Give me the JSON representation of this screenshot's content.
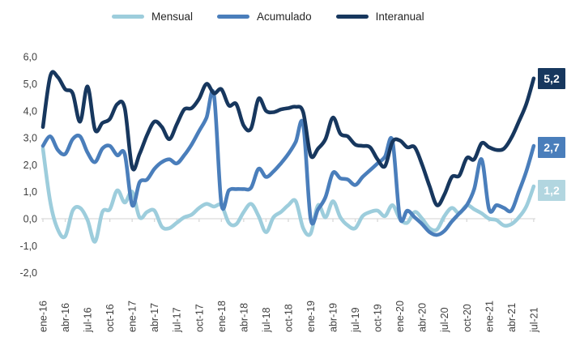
{
  "chart": {
    "legend": [
      {
        "label": "Mensual",
        "color": "#9DCDDC"
      },
      {
        "label": "Acumulado",
        "color": "#4A7EBB"
      },
      {
        "label": "Interanual",
        "color": "#17375E"
      }
    ],
    "end_labels": [
      {
        "text": "5,2",
        "color": "#17375E",
        "series": "Interanual"
      },
      {
        "text": "2,7",
        "color": "#4A7EBB",
        "series": "Acumulado"
      },
      {
        "text": "1,2",
        "color": "#B2D6E0",
        "series": "Mensual"
      }
    ]
  },
  "chart_data": {
    "type": "line",
    "title": "",
    "xlabel": "",
    "ylabel": "",
    "ylim": [
      -2,
      6
    ],
    "grid": "zero-line-only",
    "legend_position": "top",
    "decimal_separator": ",",
    "months_start": "ene-16",
    "months_end": "jul-21",
    "x_tick_labels": [
      "ene-16",
      "abr-16",
      "jul-16",
      "oct-16",
      "ene-17",
      "abr-17",
      "jul-17",
      "oct-17",
      "ene-18",
      "abr-18",
      "jul-18",
      "oct-18",
      "ene-19",
      "abr-19",
      "jul-19",
      "oct-19",
      "ene-20",
      "abr-20",
      "jul-20",
      "oct-20",
      "ene-21",
      "abr-21",
      "jul-21"
    ],
    "y_tick_labels": [
      "6,0",
      "5,0",
      "4,0",
      "3,0",
      "2,0",
      "1,0",
      "0,0",
      "-1,0",
      "-2,0"
    ],
    "series": [
      {
        "name": "Mensual",
        "color": "#9DCDDC",
        "end_value_label": "1,2",
        "values": [
          2.6,
          0.6,
          -0.4,
          -0.65,
          0.3,
          0.4,
          -0.05,
          -0.85,
          0.25,
          0.35,
          1.05,
          0.6,
          1.0,
          0.05,
          0.25,
          0.3,
          -0.3,
          -0.35,
          -0.15,
          0.05,
          0.15,
          0.4,
          0.55,
          0.45,
          0.5,
          -0.15,
          -0.2,
          0.25,
          0.55,
          0.1,
          -0.5,
          0.05,
          0.25,
          0.5,
          0.65,
          -0.35,
          -0.55,
          0.5,
          0.05,
          0.65,
          0.05,
          -0.25,
          -0.35,
          0.1,
          0.25,
          0.3,
          0.1,
          0.5,
          0.0,
          -0.15,
          0.25,
          0.0,
          -0.35,
          -0.4,
          0.1,
          0.4,
          0.2,
          0.5,
          0.35,
          0.2,
          0.0,
          -0.05,
          -0.25,
          -0.2,
          0.05,
          0.45,
          1.2
        ]
      },
      {
        "name": "Acumulado",
        "color": "#4A7EBB",
        "end_value_label": "2,7",
        "values": [
          2.7,
          3.05,
          2.55,
          2.4,
          2.95,
          3.05,
          2.45,
          2.1,
          2.6,
          2.7,
          2.35,
          2.4,
          0.5,
          1.35,
          1.45,
          1.85,
          2.1,
          2.2,
          2.05,
          2.35,
          2.75,
          3.25,
          3.75,
          4.6,
          0.55,
          1.05,
          1.1,
          1.1,
          1.15,
          1.85,
          1.55,
          1.75,
          2.05,
          2.4,
          2.85,
          3.5,
          0.0,
          0.35,
          0.8,
          1.7,
          1.5,
          1.45,
          1.25,
          1.55,
          1.8,
          2.05,
          2.3,
          2.9,
          0.05,
          0.3,
          0.05,
          -0.2,
          -0.5,
          -0.6,
          -0.45,
          -0.1,
          0.2,
          0.5,
          1.1,
          2.2,
          0.35,
          0.5,
          0.4,
          0.3,
          1.0,
          1.75,
          2.7
        ]
      },
      {
        "name": "Interanual",
        "color": "#17375E",
        "end_value_label": "5,2",
        "values": [
          3.4,
          5.3,
          5.25,
          4.8,
          4.65,
          3.6,
          4.9,
          3.3,
          3.55,
          3.7,
          4.25,
          4.1,
          1.9,
          2.4,
          3.1,
          3.6,
          3.4,
          2.95,
          3.5,
          4.05,
          4.1,
          4.45,
          5.0,
          4.65,
          4.8,
          4.2,
          4.25,
          3.45,
          3.35,
          4.45,
          4.0,
          3.95,
          4.05,
          4.1,
          4.15,
          3.95,
          2.35,
          2.6,
          2.95,
          3.75,
          3.15,
          3.05,
          2.75,
          2.7,
          2.65,
          2.2,
          1.95,
          2.85,
          2.9,
          2.65,
          2.65,
          2.0,
          1.2,
          0.5,
          0.9,
          1.55,
          1.6,
          2.25,
          2.2,
          2.8,
          2.65,
          2.55,
          2.6,
          3.0,
          3.6,
          4.25,
          5.2
        ]
      }
    ]
  }
}
